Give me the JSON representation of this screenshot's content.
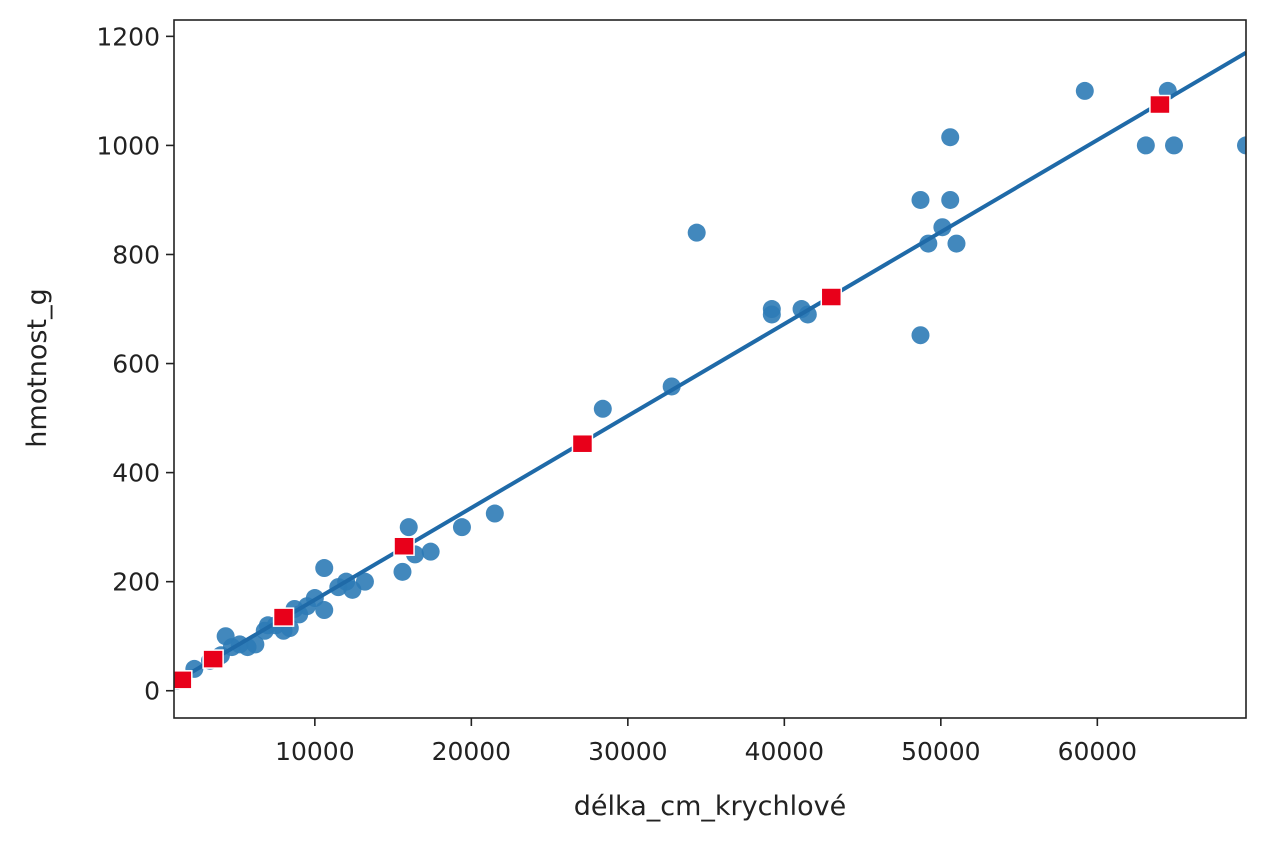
{
  "chart_data": {
    "type": "scatter",
    "title": "",
    "xlabel": "délka_cm_krychlové",
    "ylabel": "hmotnost_g",
    "xlim": [
      1000,
      69500
    ],
    "ylim": [
      -50,
      1230
    ],
    "xticks": [
      10000,
      20000,
      30000,
      40000,
      50000,
      60000
    ],
    "yticks": [
      0,
      200,
      400,
      600,
      800,
      1000,
      1200
    ],
    "grid": false,
    "legend": "none",
    "colors": {
      "points": "#2d7bb6",
      "line": "#1f6aa8",
      "predicted": "#e8001a"
    },
    "series": [
      {
        "type": "scatter",
        "points": [
          [
            1200,
            18
          ],
          [
            2300,
            40
          ],
          [
            3300,
            55
          ],
          [
            4000,
            65
          ],
          [
            4300,
            100
          ],
          [
            4700,
            80
          ],
          [
            5200,
            85
          ],
          [
            5700,
            80
          ],
          [
            6200,
            85
          ],
          [
            6800,
            110
          ],
          [
            7000,
            120
          ],
          [
            7500,
            120
          ],
          [
            8000,
            110
          ],
          [
            8400,
            115
          ],
          [
            8700,
            150
          ],
          [
            9000,
            140
          ],
          [
            9500,
            155
          ],
          [
            10000,
            170
          ],
          [
            10600,
            148
          ],
          [
            10600,
            225
          ],
          [
            11500,
            190
          ],
          [
            12000,
            200
          ],
          [
            12400,
            185
          ],
          [
            13200,
            200
          ],
          [
            15600,
            218
          ],
          [
            16000,
            300
          ],
          [
            16400,
            250
          ],
          [
            17400,
            255
          ],
          [
            19400,
            300
          ],
          [
            21500,
            325
          ],
          [
            28400,
            517
          ],
          [
            32800,
            558
          ],
          [
            34400,
            840
          ],
          [
            39200,
            690
          ],
          [
            39200,
            700
          ],
          [
            41100,
            700
          ],
          [
            41500,
            690
          ],
          [
            48700,
            900
          ],
          [
            48700,
            652
          ],
          [
            49200,
            820
          ],
          [
            50100,
            850
          ],
          [
            50600,
            900
          ],
          [
            50600,
            1015
          ],
          [
            51000,
            820
          ],
          [
            59200,
            1100
          ],
          [
            63100,
            1000
          ],
          [
            64500,
            1100
          ],
          [
            64900,
            1000
          ],
          [
            69500,
            1000
          ]
        ]
      },
      {
        "type": "line",
        "points": [
          [
            1000,
            15
          ],
          [
            69500,
            1170
          ]
        ]
      },
      {
        "type": "scatter-predicted",
        "points": [
          [
            1500,
            20
          ],
          [
            3500,
            58
          ],
          [
            8000,
            135
          ],
          [
            15700,
            265
          ],
          [
            27100,
            453
          ],
          [
            43000,
            722
          ],
          [
            64000,
            1075
          ]
        ]
      }
    ]
  }
}
